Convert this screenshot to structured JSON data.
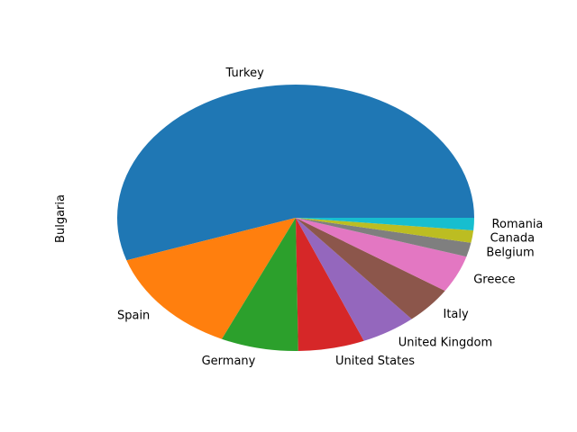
{
  "chart_data": {
    "type": "pie",
    "ylabel": "Bulgaria",
    "categories": [
      "Turkey",
      "Spain",
      "Germany",
      "United States",
      "United Kingdom",
      "Italy",
      "Greece",
      "Belgium",
      "Canada",
      "Romania"
    ],
    "values": [
      55.0,
      13.0,
      7.0,
      6.0,
      5.0,
      4.5,
      4.5,
      1.7,
      1.5,
      1.5
    ],
    "colors": [
      "#1f77b4",
      "#ff7f0e",
      "#2ca02c",
      "#d62728",
      "#9467bd",
      "#8c564b",
      "#e377c2",
      "#7f7f7f",
      "#bcbd22",
      "#17becf"
    ],
    "start_angle_deg": 0,
    "direction": "counterclockwise",
    "legend": "none"
  }
}
